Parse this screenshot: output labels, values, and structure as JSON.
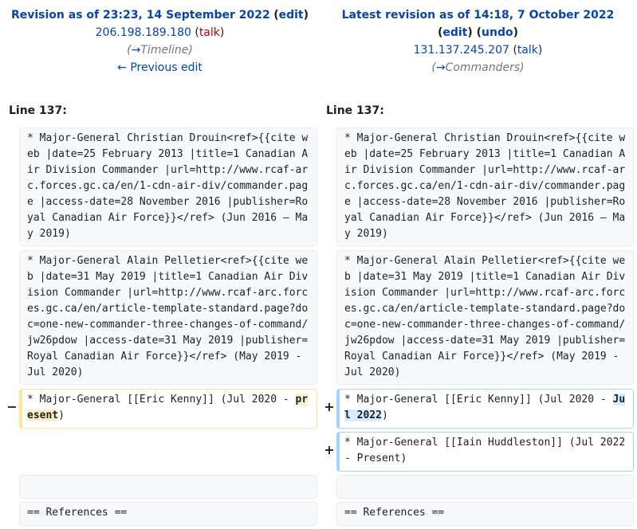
{
  "left": {
    "revision_label": "Revision as of 23:23, 14 September 2022",
    "edit_label": "edit",
    "user": "206.198.189.180",
    "talk_label": "talk",
    "summary_arrow": "→",
    "summary_section": "Timeline",
    "prev_link": "← Previous edit",
    "line_label": "Line 137:"
  },
  "right": {
    "revision_label": "Latest revision as of 14:18, 7 October 2022",
    "edit_label": "edit",
    "undo_label": "undo",
    "user": "131.137.245.207",
    "talk_label": "talk",
    "summary_arrow": "→",
    "summary_section": "Commanders",
    "line_label": "Line 137:"
  },
  "rows": {
    "drouin": "* Major-General Christian Drouin<ref>{{cite web |date=25 February 2013 |title=1 Canadian Air Division Commander |url=http://www.rcaf-arc.forces.gc.ca/en/1-cdn-air-div/commander.page |access-date=28 November 2016 |publisher=Royal Canadian Air Force}}</ref> (Jun 2016 – May 2019)",
    "pelletier": "* Major-General Alain Pelletier<ref>{{cite web |date=31 May 2019 |title=1 Canadian Air Division Commander |url=http://www.rcaf-arc.forces.gc.ca/en/article-template-standard.page?doc=one-new-commander-three-changes-of-command/jw26pdow |access-date=31 May 2019 |publisher=Royal Canadian Air Force}}</ref> (May 2019 - Jul 2020)",
    "kenny_prefix": "* Major-General [[Eric Kenny]] (Jul 2020 - ",
    "kenny_old_word": "present",
    "kenny_new_word": "Jul 2022",
    "kenny_suffix": ")",
    "huddleston": "* Major-General [[Iain Huddleston]] (Jul 2022 - Present)",
    "references": "== References =="
  },
  "markers": {
    "minus": "−",
    "plus": "+"
  }
}
